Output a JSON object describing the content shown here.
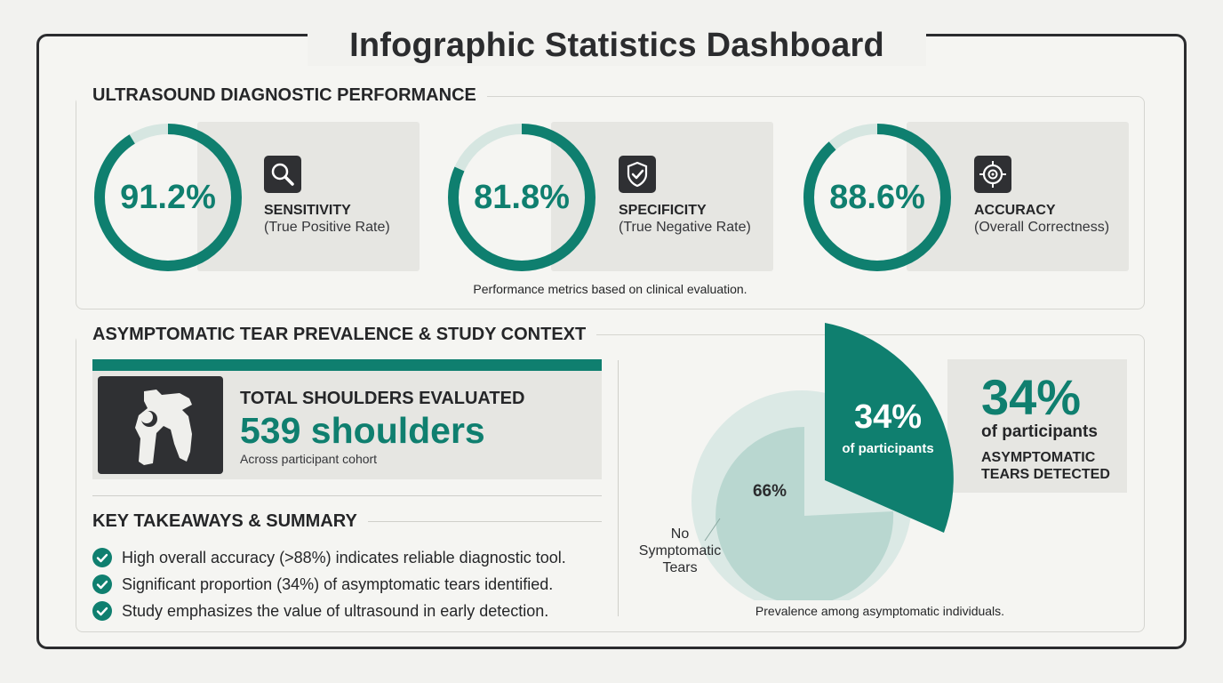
{
  "title": "Infographic Statistics Dashboard",
  "performance": {
    "heading": "ULTRASOUND DIAGNOSTIC PERFORMANCE",
    "metrics": [
      {
        "value": "91.2%",
        "fraction": 0.912,
        "label": "SENSITIVITY",
        "sub": "(True Positive Rate)",
        "icon": "magnifier-icon"
      },
      {
        "value": "81.8%",
        "fraction": 0.818,
        "label": "SPECIFICITY",
        "sub": "(True Negative Rate)",
        "icon": "shield-check-icon"
      },
      {
        "value": "88.6%",
        "fraction": 0.886,
        "label": "ACCURACY",
        "sub": "(Overall Correctness)",
        "icon": "target-icon"
      }
    ],
    "note": "Performance metrics based on clinical evaluation."
  },
  "prevalence": {
    "heading": "ASYMPTOMATIC TEAR PREVALENCE & STUDY CONTEXT",
    "total": {
      "label": "TOTAL SHOULDERS EVALUATED",
      "value": "539 shoulders",
      "sub": "Across participant cohort",
      "icon": "shoulder-bone-icon"
    },
    "takeaways": {
      "title": "KEY TAKEAWAYS & SUMMARY",
      "items": [
        "High overall accuracy (>88%) indicates reliable diagnostic tool.",
        "Significant proportion (34%) of asymptomatic tears identified.",
        "Study emphasizes the value of ultrasound in early detection."
      ]
    },
    "pie": {
      "slice_value": "34%",
      "slice_sub": "of participants",
      "rest_value": "66%",
      "rest_label": "No Symptomatic Tears",
      "note": "Prevalence among asymptomatic individuals."
    },
    "callout": {
      "value": "34%",
      "sub": "of participants",
      "label": "ASYMPTOMATIC TEARS DETECTED"
    }
  },
  "colors": {
    "accent": "#0f7f6f",
    "track": "#d6e6e1",
    "pie_light": "#b9d7d0",
    "pie_shadow": "#dbe9e5",
    "dark": "#2f3033"
  }
}
